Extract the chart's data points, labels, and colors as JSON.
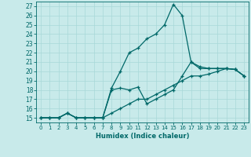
{
  "xlabel": "Humidex (Indice chaleur)",
  "bg_color": "#c8eaea",
  "grid_color": "#a8d8d8",
  "line_color": "#006868",
  "xlim": [
    -0.5,
    23.5
  ],
  "ylim": [
    14.5,
    27.5
  ],
  "xticks": [
    0,
    1,
    2,
    3,
    4,
    5,
    6,
    7,
    8,
    9,
    10,
    11,
    12,
    13,
    14,
    15,
    16,
    17,
    18,
    19,
    20,
    21,
    22,
    23
  ],
  "yticks": [
    15,
    16,
    17,
    18,
    19,
    20,
    21,
    22,
    23,
    24,
    25,
    26,
    27
  ],
  "line1_x": [
    0,
    1,
    2,
    3,
    4,
    5,
    6,
    7,
    8,
    9,
    10,
    11,
    12,
    13,
    14,
    15,
    16,
    17,
    18,
    19,
    20,
    21,
    22,
    23
  ],
  "line1_y": [
    15,
    15,
    15,
    15.5,
    15,
    15,
    15,
    15,
    18.2,
    20,
    22,
    22.5,
    23.5,
    24,
    25,
    27.2,
    26,
    21,
    20.5,
    20.3,
    20.3,
    20.3,
    20.2,
    19.5
  ],
  "line2_x": [
    0,
    1,
    2,
    3,
    4,
    5,
    6,
    7,
    8,
    9,
    10,
    11,
    12,
    13,
    14,
    15,
    16,
    17,
    18,
    19,
    20,
    21,
    22,
    23
  ],
  "line2_y": [
    15,
    15,
    15,
    15.5,
    15,
    15,
    15,
    15,
    18,
    18.2,
    18,
    18.3,
    16.5,
    17,
    17.5,
    18,
    19.5,
    21.0,
    20.3,
    20.3,
    20.3,
    20.3,
    20.2,
    19.5
  ],
  "line3_x": [
    0,
    1,
    2,
    3,
    4,
    5,
    6,
    7,
    8,
    9,
    10,
    11,
    12,
    13,
    14,
    15,
    16,
    17,
    18,
    19,
    20,
    21,
    22,
    23
  ],
  "line3_y": [
    15,
    15,
    15,
    15.5,
    15,
    15,
    15,
    15,
    15.5,
    16,
    16.5,
    17,
    17,
    17.5,
    18,
    18.5,
    19,
    19.5,
    19.5,
    19.7,
    20,
    20.3,
    20.2,
    19.5
  ]
}
